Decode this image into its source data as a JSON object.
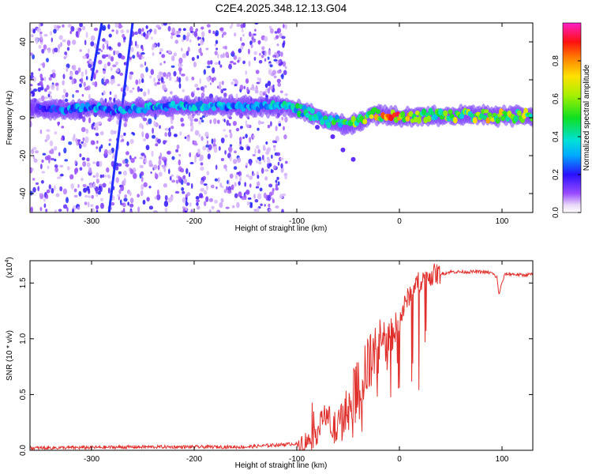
{
  "title": "C2E4.2025.348.12.13.G04",
  "chart_data": [
    {
      "type": "heatmap",
      "id": "spectrogram",
      "xlabel": "Height of straight line (km)",
      "ylabel": "Frequency (Hz)",
      "xlim": [
        -360,
        130
      ],
      "ylim": [
        -50,
        50
      ],
      "xticks": [
        -300,
        -200,
        -100,
        0,
        100
      ],
      "yticks": [
        -40,
        -20,
        0,
        20,
        40
      ],
      "colorbar": {
        "label": "Normalized spectral amplitude",
        "range": [
          0,
          1
        ],
        "ticks": [
          0.0,
          0.2,
          0.4,
          0.6,
          0.8
        ],
        "tick_labels": [
          "0.0",
          "0.2",
          "0.4",
          "0.6",
          "0.8"
        ]
      },
      "ridge": [
        {
          "x": -355,
          "y": 5,
          "amp": 0.2
        },
        {
          "x": -320,
          "y": 4,
          "amp": 0.3
        },
        {
          "x": -300,
          "y": 6,
          "amp": 0.35
        },
        {
          "x": -280,
          "y": 4,
          "amp": 0.3
        },
        {
          "x": -250,
          "y": 5,
          "amp": 0.4
        },
        {
          "x": -220,
          "y": 6,
          "amp": 0.35
        },
        {
          "x": -190,
          "y": 6,
          "amp": 0.4
        },
        {
          "x": -160,
          "y": 6,
          "amp": 0.35
        },
        {
          "x": -130,
          "y": 6,
          "amp": 0.35
        },
        {
          "x": -110,
          "y": 6,
          "amp": 0.4
        },
        {
          "x": -95,
          "y": 4,
          "amp": 0.45
        },
        {
          "x": -80,
          "y": 0,
          "amp": 0.45
        },
        {
          "x": -65,
          "y": -2,
          "amp": 0.5
        },
        {
          "x": -50,
          "y": -4,
          "amp": 0.55
        },
        {
          "x": -38,
          "y": -2,
          "amp": 0.6
        },
        {
          "x": -25,
          "y": 2,
          "amp": 0.7
        },
        {
          "x": -10,
          "y": 1,
          "amp": 0.8
        },
        {
          "x": 0,
          "y": 0,
          "amp": 0.85
        },
        {
          "x": 20,
          "y": 1,
          "amp": 0.55
        },
        {
          "x": 50,
          "y": 1,
          "amp": 0.6
        },
        {
          "x": 80,
          "y": 1,
          "amp": 0.65
        },
        {
          "x": 100,
          "y": 1,
          "amp": 0.75
        },
        {
          "x": 130,
          "y": 1,
          "amp": 0.6
        }
      ],
      "streaks": [
        {
          "x0": -283,
          "y0": -50,
          "x1": -260,
          "y1": 50
        },
        {
          "x0": -300,
          "y0": 20,
          "x1": -290,
          "y1": 50
        }
      ],
      "branch": [
        {
          "x": -80,
          "y": -5
        },
        {
          "x": -65,
          "y": -10
        },
        {
          "x": -55,
          "y": -17
        },
        {
          "x": -45,
          "y": -22
        }
      ]
    },
    {
      "type": "line",
      "id": "snr",
      "xlabel": "Height of straight line (km)",
      "ylabel": "SNR (10 * v/v)",
      "scale_label": "(x10",
      "scale_exp": "4",
      "scale_close": ")",
      "xlim": [
        -360,
        130
      ],
      "ylim": [
        0,
        1.7
      ],
      "xticks": [
        -300,
        -200,
        -100,
        0,
        100
      ],
      "yticks": [
        0.0,
        0.5,
        1.0,
        1.5
      ],
      "ytick_labels": [
        "0.0",
        "0.5",
        "1.0",
        "1.5"
      ],
      "color": "#e0302c",
      "series_name": "SNR",
      "x": [
        -360,
        -250,
        -150,
        -100,
        -90,
        -85,
        -80,
        -75,
        -72,
        -65,
        -60,
        -55,
        -50,
        -45,
        -40,
        -35,
        -30,
        -25,
        -20,
        -15,
        -10,
        -5,
        0,
        5,
        10,
        15,
        20,
        25,
        30,
        35,
        40,
        50,
        60,
        70,
        80,
        90,
        95,
        97,
        100,
        103,
        110,
        120,
        130
      ],
      "values": [
        0.02,
        0.03,
        0.03,
        0.06,
        0.08,
        0.1,
        0.15,
        0.3,
        0.35,
        0.2,
        0.18,
        0.3,
        0.35,
        0.45,
        0.55,
        0.65,
        0.75,
        0.85,
        0.9,
        0.95,
        1.0,
        1.08,
        1.15,
        1.3,
        1.4,
        1.48,
        1.52,
        1.55,
        1.57,
        1.58,
        1.58,
        1.6,
        1.6,
        1.6,
        1.6,
        1.59,
        1.55,
        1.4,
        1.5,
        1.58,
        1.58,
        1.57,
        1.58
      ]
    }
  ]
}
